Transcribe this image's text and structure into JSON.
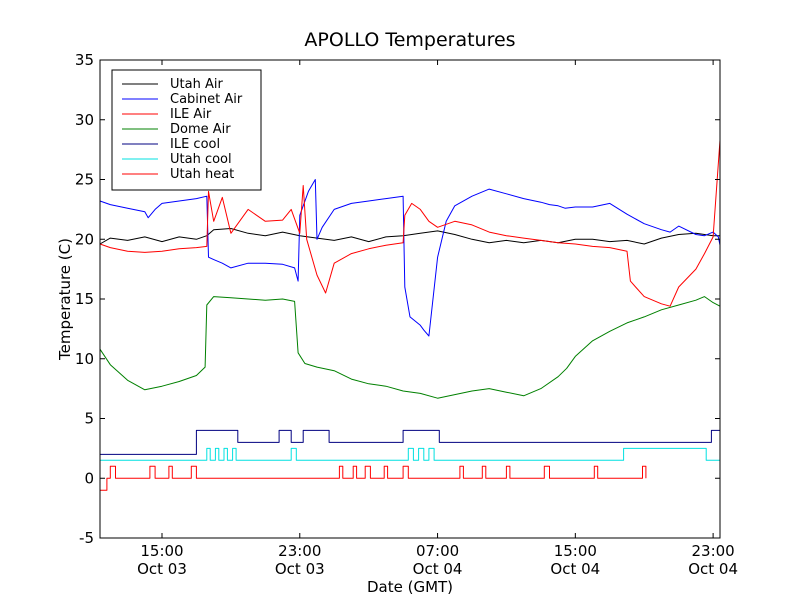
{
  "chart_data": {
    "type": "line",
    "title": "APOLLO Temperatures",
    "xlabel": "Date (GMT)",
    "ylabel": "Temperature (C)",
    "xlim": [
      11.4,
      47.4
    ],
    "ylim": [
      -5,
      35
    ],
    "grid": false,
    "legend_position": "top-left",
    "yticks": [
      {
        "value": -5,
        "label": "-5"
      },
      {
        "value": 0,
        "label": "0"
      },
      {
        "value": 5,
        "label": "5"
      },
      {
        "value": 10,
        "label": "10"
      },
      {
        "value": 15,
        "label": "15"
      },
      {
        "value": 20,
        "label": "20"
      },
      {
        "value": 25,
        "label": "25"
      },
      {
        "value": 30,
        "label": "30"
      },
      {
        "value": 35,
        "label": "35"
      }
    ],
    "xticks": [
      {
        "value": 15,
        "time": "15:00",
        "date": "Oct 03"
      },
      {
        "value": 23,
        "time": "23:00",
        "date": "Oct 03"
      },
      {
        "value": 31,
        "time": "07:00",
        "date": "Oct 04"
      },
      {
        "value": 39,
        "time": "15:00",
        "date": "Oct 04"
      },
      {
        "value": 47,
        "time": "23:00",
        "date": "Oct 04"
      }
    ],
    "series": [
      {
        "name": "Utah Air",
        "color": "#000000",
        "x": [
          11.4,
          12,
          13,
          14,
          15,
          16,
          17,
          17.6,
          18,
          19,
          20,
          21,
          22,
          23,
          24,
          25,
          26,
          27,
          28,
          29,
          30,
          31,
          32,
          33,
          34,
          35,
          36,
          37,
          38,
          39,
          40,
          41,
          42,
          43,
          44,
          45,
          46,
          47,
          47.4
        ],
        "y": [
          19.6,
          20.1,
          19.9,
          20.2,
          19.8,
          20.2,
          20,
          20.3,
          20.8,
          20.9,
          20.5,
          20.3,
          20.6,
          20.3,
          20.1,
          19.9,
          20.2,
          19.8,
          20.2,
          20.3,
          20.5,
          20.7,
          20.4,
          20,
          19.7,
          19.9,
          19.7,
          19.9,
          19.7,
          20,
          20,
          19.8,
          19.9,
          19.6,
          20.1,
          20.4,
          20.5,
          20.3,
          20.3
        ],
        "label_ref": "legend.utah_air"
      },
      {
        "name": "Cabinet Air",
        "color": "#0000ff",
        "x": [
          11.4,
          12,
          13,
          14,
          14.2,
          14.6,
          15,
          16,
          17,
          17.6,
          17.7,
          18,
          18.5,
          19,
          20,
          21,
          22,
          22.7,
          22.9,
          23,
          23.5,
          23.9,
          24,
          24.3,
          25,
          26,
          27,
          28,
          29,
          29.1,
          29.4,
          30,
          30.2,
          30.5,
          31,
          31.5,
          32,
          33,
          34,
          35,
          36,
          37,
          37.5,
          38,
          38.4,
          39,
          40,
          41,
          42,
          43,
          44,
          44.5,
          45,
          46,
          46.5,
          47,
          47.3,
          47.4
        ],
        "y": [
          23.2,
          22.9,
          22.6,
          22.3,
          21.8,
          22.5,
          23,
          23.2,
          23.4,
          23.6,
          18.5,
          18.3,
          18,
          17.6,
          18,
          18,
          17.9,
          17.6,
          16.5,
          22,
          24,
          25,
          20,
          21,
          22.5,
          23,
          23.2,
          23.4,
          23.6,
          16,
          13.5,
          12.8,
          12.4,
          11.9,
          18.5,
          21.5,
          22.8,
          23.6,
          24.2,
          23.8,
          23.4,
          23.1,
          22.9,
          22.8,
          22.6,
          22.7,
          22.7,
          23,
          22.1,
          21.3,
          20.8,
          20.6,
          21.1,
          20.4,
          20.3,
          20.6,
          20.2,
          19.5
        ],
        "label_ref": "legend.cabinet_air"
      },
      {
        "name": "ILE Air",
        "color": "#ff0000",
        "x": [
          11.4,
          12,
          13,
          14,
          15,
          16,
          17,
          17.6,
          17.7,
          18,
          18.5,
          19,
          20,
          21,
          22,
          22.5,
          23,
          23.2,
          23.4,
          24,
          24.5,
          25,
          26,
          27,
          28,
          29,
          29.1,
          29.5,
          30,
          30.5,
          31,
          32,
          33,
          34,
          35,
          36,
          37,
          38,
          39,
          40,
          41,
          42,
          42.2,
          42.5,
          43,
          44,
          44.5,
          45,
          46,
          46.5,
          47,
          47.4
        ],
        "y": [
          19.6,
          19.3,
          19.0,
          18.9,
          19.0,
          19.2,
          19.3,
          19.4,
          24,
          21.5,
          23.5,
          20.5,
          22.5,
          21.5,
          21.6,
          22.5,
          20.5,
          24.5,
          20,
          17,
          15.5,
          18,
          18.8,
          19.2,
          19.5,
          19.7,
          22,
          23,
          22.5,
          21.5,
          21,
          21.5,
          21.2,
          20.6,
          20.3,
          20.1,
          19.9,
          19.7,
          19.6,
          19.4,
          19.3,
          19,
          16.5,
          16,
          15.2,
          14.6,
          14.4,
          16,
          17.5,
          18.8,
          20.2,
          28.3
        ],
        "label_ref": "legend.ile_air"
      },
      {
        "name": "Dome Air",
        "color": "#008000",
        "x": [
          11.4,
          12,
          13,
          14,
          15,
          16,
          17,
          17.5,
          17.6,
          18,
          19,
          20,
          21,
          22,
          22.7,
          22.9,
          23.3,
          24,
          25,
          26,
          27,
          28,
          29,
          30,
          31,
          32,
          33,
          34,
          35,
          36,
          37,
          38,
          38.5,
          39,
          40,
          41,
          42,
          43,
          44,
          45,
          46,
          46.5,
          47,
          47.4
        ],
        "y": [
          10.8,
          9.5,
          8.2,
          7.4,
          7.7,
          8.1,
          8.6,
          9.3,
          14.5,
          15.2,
          15.1,
          15,
          14.9,
          15,
          14.8,
          10.5,
          9.6,
          9.3,
          9.0,
          8.3,
          7.9,
          7.7,
          7.3,
          7.1,
          6.7,
          7.0,
          7.3,
          7.5,
          7.2,
          6.9,
          7.5,
          8.5,
          9.2,
          10.2,
          11.5,
          12.3,
          13.0,
          13.5,
          14.1,
          14.5,
          14.9,
          15.2,
          14.7,
          14.4
        ],
        "label_ref": "legend.dome_air"
      },
      {
        "name": "ILE cool",
        "color": "#000080",
        "x": [
          11.4,
          17.0,
          17.0,
          19.4,
          19.4,
          21.8,
          21.8,
          22.5,
          22.5,
          23.2,
          23.2,
          24.7,
          24.7,
          29.0,
          29.0,
          31.1,
          31.1,
          46.9,
          46.9,
          47.4
        ],
        "y": [
          2.0,
          2.0,
          4.0,
          4.0,
          3.0,
          3.0,
          4.0,
          4.0,
          3.0,
          3.0,
          4.0,
          4.0,
          3.0,
          3.0,
          4.0,
          4.0,
          3.0,
          3.0,
          4.0,
          4.0
        ],
        "label_ref": "legend.ile_cool"
      },
      {
        "name": "Utah cool",
        "color": "#00e0e0",
        "x": [
          11.4,
          17.6,
          17.6,
          17.8,
          17.8,
          18.1,
          18.1,
          18.3,
          18.3,
          18.6,
          18.6,
          18.8,
          18.8,
          19.1,
          19.1,
          19.3,
          19.3,
          22.5,
          22.5,
          22.8,
          22.8,
          29.3,
          29.3,
          29.6,
          29.6,
          29.9,
          29.9,
          30.2,
          30.2,
          30.5,
          30.5,
          30.8,
          30.8,
          41.8,
          41.8,
          46.6,
          46.6,
          47.4
        ],
        "y": [
          1.5,
          1.5,
          2.5,
          2.5,
          1.5,
          1.5,
          2.5,
          2.5,
          1.5,
          1.5,
          2.5,
          2.5,
          1.5,
          1.5,
          2.5,
          2.5,
          1.5,
          1.5,
          2.5,
          2.5,
          1.5,
          1.5,
          2.5,
          2.5,
          1.5,
          1.5,
          2.5,
          2.5,
          1.5,
          1.5,
          2.5,
          2.5,
          1.5,
          1.5,
          2.5,
          2.5,
          1.5,
          1.5
        ],
        "label_ref": "legend.utah_cool"
      },
      {
        "name": "Utah heat",
        "color": "#ff0000",
        "x": [
          11.4,
          11.4,
          11.8,
          11.8,
          12.0,
          12.0,
          12.3,
          12.3,
          14.3,
          14.3,
          14.6,
          14.6,
          15.4,
          15.4,
          15.6,
          15.6,
          16.7,
          16.7,
          17.0,
          17.0,
          25.3,
          25.3,
          25.5,
          25.5,
          26.1,
          26.1,
          26.3,
          26.3,
          26.8,
          26.8,
          27.1,
          27.1,
          27.9,
          27.9,
          28.1,
          28.1,
          29.0,
          29.0,
          29.3,
          29.3,
          32.3,
          32.3,
          32.5,
          32.5,
          33.6,
          33.6,
          33.8,
          33.8,
          35.0,
          35.0,
          35.2,
          35.2,
          37.2,
          37.2,
          37.5,
          37.5,
          40.1,
          40.1,
          40.3,
          40.3,
          42.9,
          42.9,
          43.1,
          43.1
        ],
        "y": [
          0,
          -1,
          -1,
          0,
          0,
          1,
          1,
          0,
          0,
          1,
          1,
          0,
          0,
          1,
          1,
          0,
          0,
          1,
          1,
          0,
          0,
          1,
          1,
          0,
          0,
          1,
          1,
          0,
          0,
          1,
          1,
          0,
          0,
          1,
          1,
          0,
          0,
          1,
          1,
          0,
          0,
          1,
          1,
          0,
          0,
          1,
          1,
          0,
          0,
          1,
          1,
          0,
          0,
          1,
          1,
          0,
          0,
          1,
          1,
          0,
          0,
          1,
          1,
          0
        ],
        "label_ref": "legend.utah_heat"
      }
    ]
  },
  "legend": {
    "utah_air": "Utah Air",
    "cabinet_air": "Cabinet Air",
    "ile_air": "ILE Air",
    "dome_air": "Dome Air",
    "ile_cool": "ILE cool",
    "utah_cool": "Utah cool",
    "utah_heat": "Utah heat"
  }
}
